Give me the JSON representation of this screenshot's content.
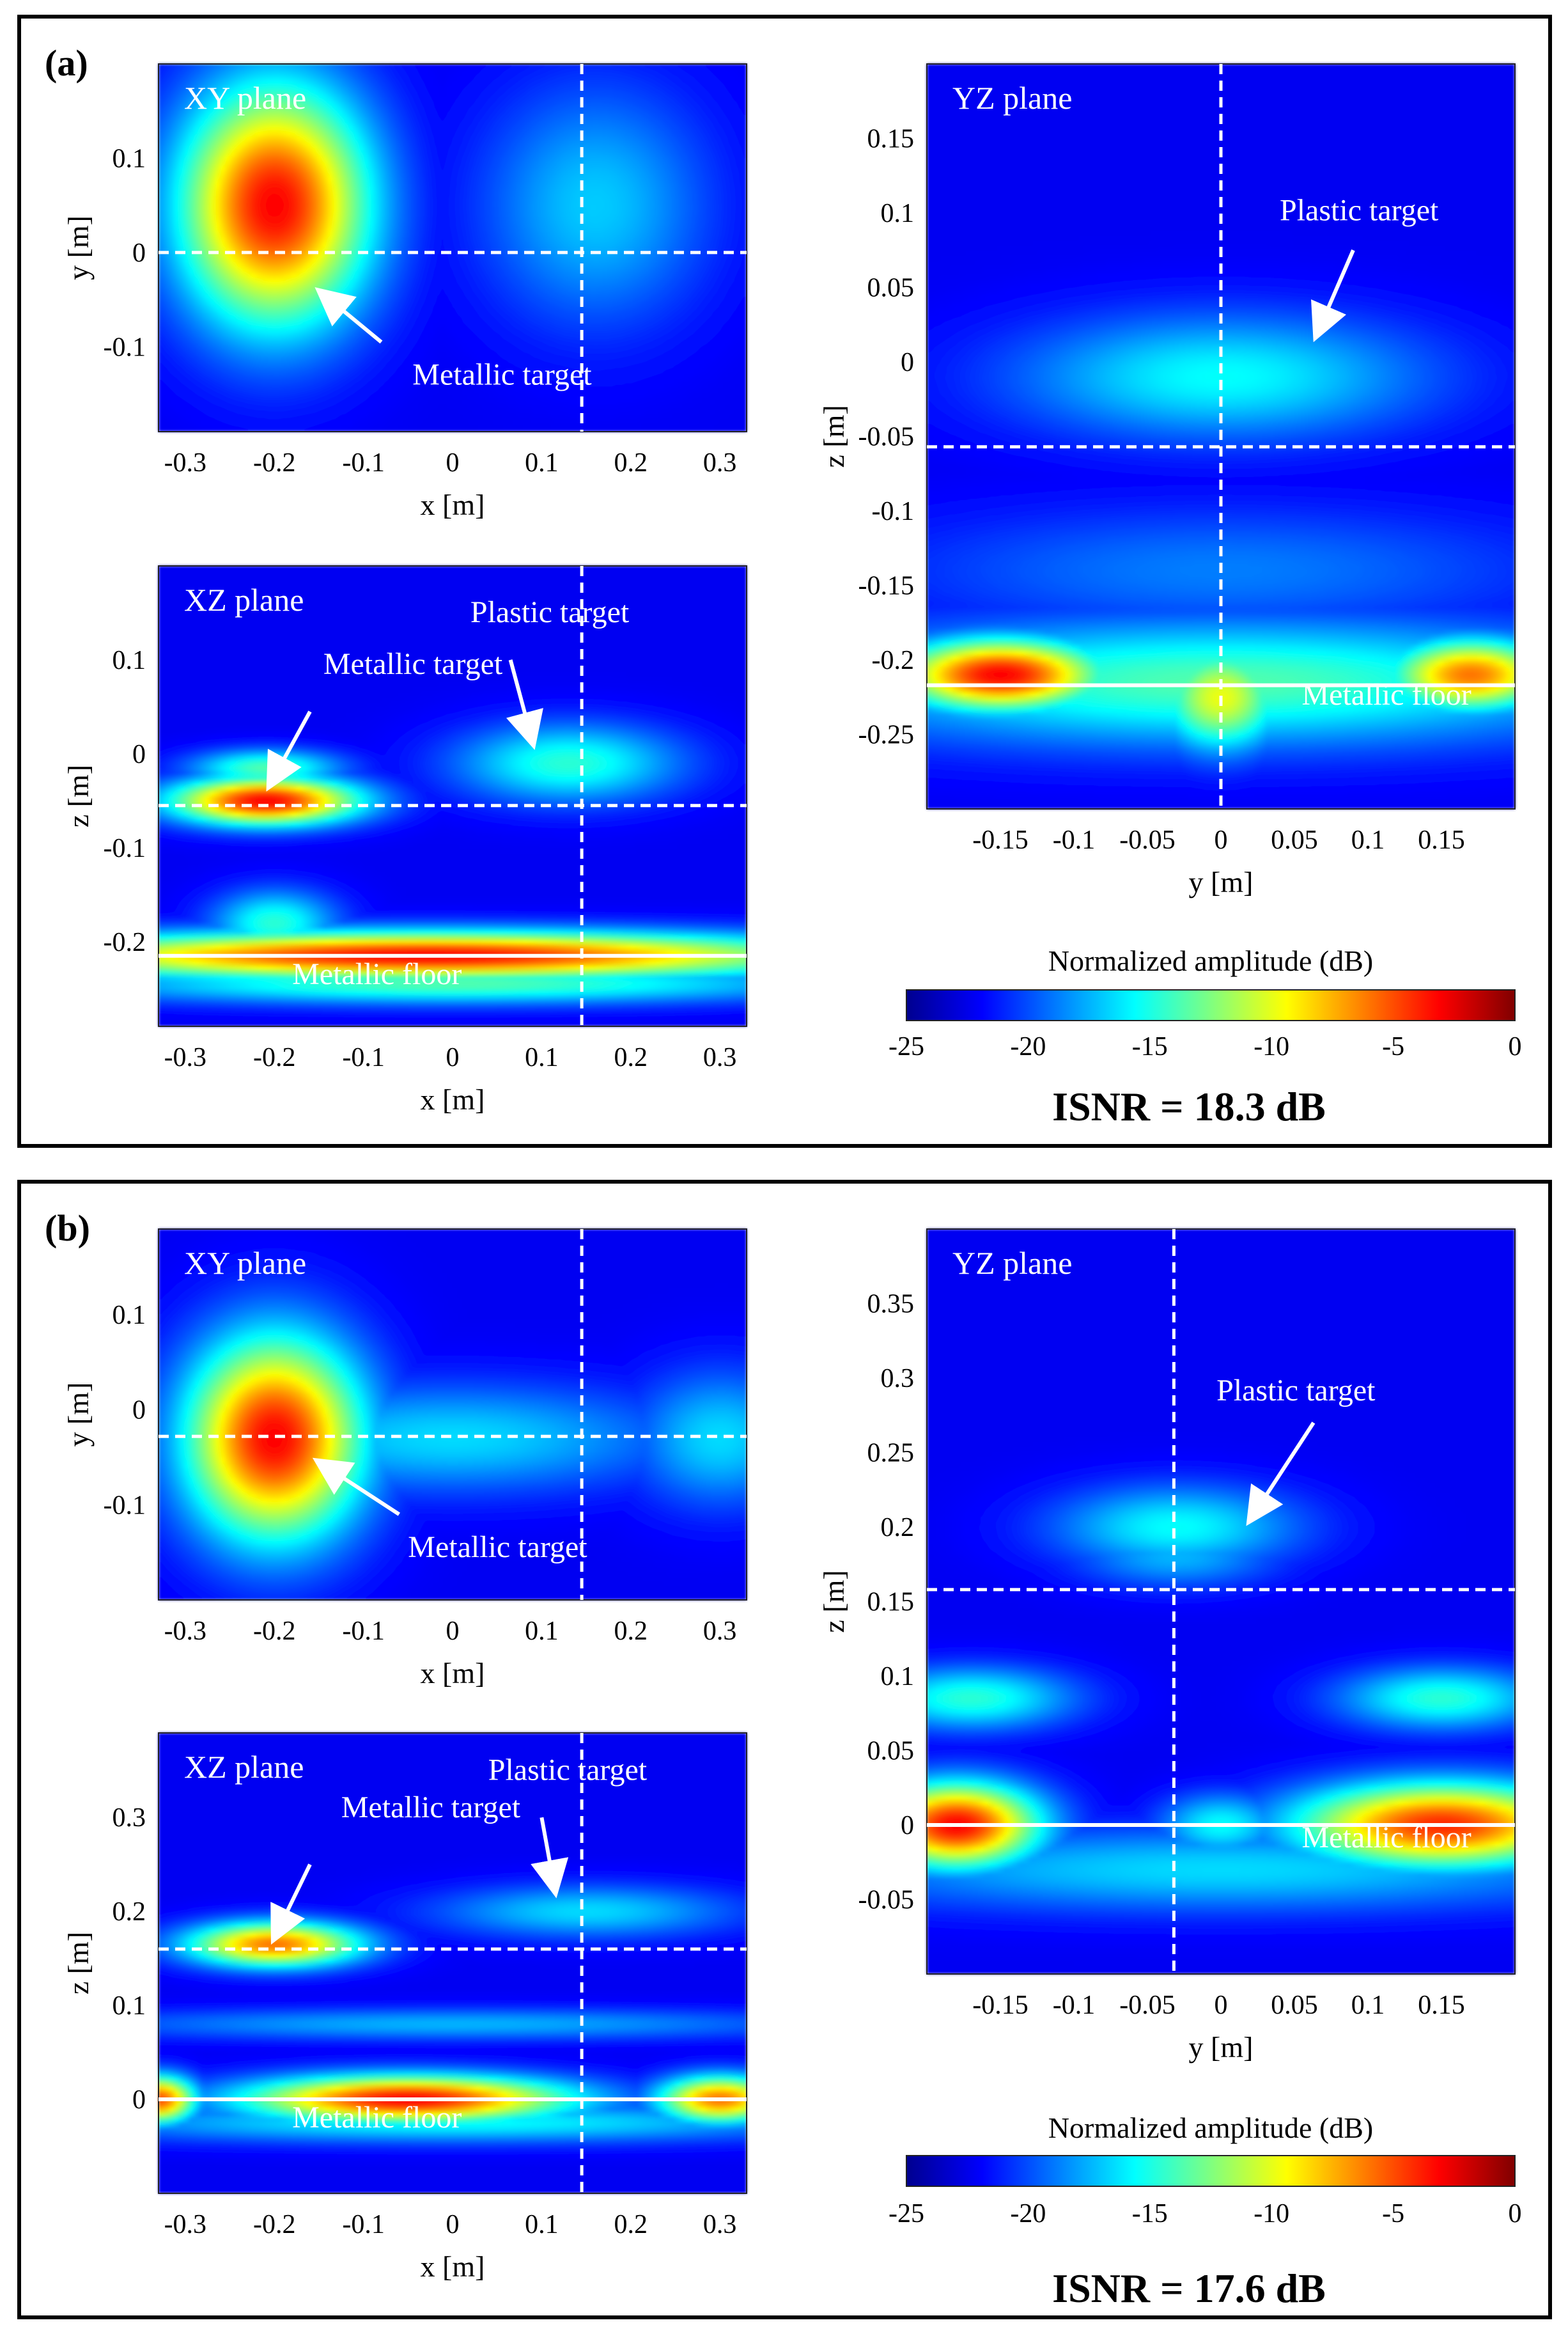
{
  "figure": {
    "panels": [
      {
        "label": "(a)",
        "isnr": "ISNR = 18.3 dB",
        "colorbar": {
          "title": "Normalized amplitude (dB)",
          "ticks": [
            "-25",
            "-20",
            "-15",
            "-10",
            "-5",
            "0"
          ],
          "range": [
            -25,
            0
          ]
        },
        "plots": [
          {
            "id": "a-xy",
            "plane_label": "XY plane",
            "xlabel": "x [m]",
            "ylabel": "y [m]",
            "xlim": [
              -0.33,
              0.33
            ],
            "ylim": [
              -0.19,
              0.2
            ],
            "xticks": [
              -0.3,
              -0.2,
              -0.1,
              0,
              0.1,
              0.2,
              0.3
            ],
            "xtick_labels": [
              "-0.3",
              "-0.2",
              "-0.1",
              "0",
              "0.1",
              "0.2",
              "0.3"
            ],
            "yticks": [
              0.1,
              0,
              -0.1
            ],
            "ytick_labels": [
              "0.1",
              "0",
              "-0.1"
            ],
            "cut_x": 0.145,
            "cut_y": 0.0,
            "solid_y": null,
            "blobs": [
              {
                "x": -0.2,
                "y": 0.05,
                "sx": 0.075,
                "sy": 0.09,
                "v": 1.0
              },
              {
                "x": -0.2,
                "y": 0.05,
                "sx": 0.032,
                "sy": 0.042,
                "v": 0.55
              },
              {
                "x": 0.16,
                "y": 0.05,
                "sx": 0.09,
                "sy": 0.09,
                "v": 0.28
              }
            ],
            "annotations": [
              {
                "text": "Metallic target",
                "tx": -0.045,
                "ty": -0.14,
                "ax": -0.08,
                "ay": -0.095,
                "hx": -0.148,
                "hy": -0.042
              }
            ]
          },
          {
            "id": "a-xz",
            "plane_label": "XZ plane",
            "xlabel": "x [m]",
            "ylabel": "z [m]",
            "xlim": [
              -0.33,
              0.33
            ],
            "ylim": [
              -0.29,
              0.2
            ],
            "xticks": [
              -0.3,
              -0.2,
              -0.1,
              0,
              0.1,
              0.2,
              0.3
            ],
            "xtick_labels": [
              "-0.3",
              "-0.2",
              "-0.1",
              "0",
              "0.1",
              "0.2",
              "0.3"
            ],
            "yticks": [
              0.1,
              0,
              -0.1,
              -0.2
            ],
            "ytick_labels": [
              "0.1",
              "0",
              "-0.1",
              "-0.2"
            ],
            "cut_x": 0.145,
            "cut_y": -0.055,
            "solid_y": -0.215,
            "blobs": [
              {
                "x": -0.21,
                "y": -0.05,
                "sx": 0.075,
                "sy": 0.018,
                "v": 1.0
              },
              {
                "x": -0.21,
                "y": -0.015,
                "sx": 0.06,
                "sy": 0.014,
                "v": 0.45
              },
              {
                "x": 0.13,
                "y": -0.01,
                "sx": 0.09,
                "sy": 0.03,
                "v": 0.4
              },
              {
                "x": -0.03,
                "y": -0.215,
                "sx": 0.32,
                "sy": 0.018,
                "v": 1.0
              },
              {
                "x": -0.2,
                "y": -0.18,
                "sx": 0.05,
                "sy": 0.025,
                "v": 0.4
              },
              {
                "x": 0.0,
                "y": -0.245,
                "sx": 0.3,
                "sy": 0.015,
                "v": 0.45
              }
            ],
            "annotations": [
              {
                "text": "Metallic target",
                "tx": -0.145,
                "ty": 0.085,
                "ax": -0.16,
                "ay": 0.045,
                "hx": -0.205,
                "hy": -0.033
              },
              {
                "text": "Plastic target",
                "tx": 0.02,
                "ty": 0.14,
                "ax": 0.065,
                "ay": 0.1,
                "hx": 0.09,
                "hy": 0.012
              },
              {
                "text": "Metallic floor",
                "tx": -0.18,
                "ty": -0.245,
                "ax": null,
                "ay": null,
                "hx": null,
                "hy": null
              }
            ]
          },
          {
            "id": "a-yz",
            "plane_label": "YZ plane",
            "xlabel": "y [m]",
            "ylabel": "z [m]",
            "xlim": [
              -0.2,
              0.2
            ],
            "ylim": [
              -0.3,
              0.2
            ],
            "xticks": [
              -0.15,
              -0.1,
              -0.05,
              0,
              0.05,
              0.1,
              0.15
            ],
            "xtick_labels": [
              "-0.15",
              "-0.1",
              "-0.05",
              "0",
              "0.05",
              "0.1",
              "0.15"
            ],
            "yticks": [
              0.15,
              0.1,
              0.05,
              0,
              -0.05,
              -0.1,
              -0.15,
              -0.2,
              -0.25
            ],
            "ytick_labels": [
              "0.15",
              "0.1",
              "0.05",
              "0",
              "-0.05",
              "-0.1",
              "-0.15",
              "-0.2",
              "-0.25"
            ],
            "cut_x": 0.0,
            "cut_y": -0.057,
            "solid_y": -0.217,
            "blobs": [
              {
                "x": 0.0,
                "y": -0.01,
                "sx": 0.1,
                "sy": 0.03,
                "v": 0.35
              },
              {
                "x": -0.15,
                "y": -0.21,
                "sx": 0.05,
                "sy": 0.017,
                "v": 1.0
              },
              {
                "x": 0.17,
                "y": -0.21,
                "sx": 0.04,
                "sy": 0.017,
                "v": 0.85
              },
              {
                "x": 0.0,
                "y": -0.225,
                "sx": 0.03,
                "sy": 0.025,
                "v": 0.65
              },
              {
                "x": 0.0,
                "y": -0.215,
                "sx": 0.2,
                "sy": 0.03,
                "v": 0.45
              },
              {
                "x": 0.0,
                "y": -0.14,
                "sx": 0.16,
                "sy": 0.03,
                "v": 0.18
              }
            ],
            "annotations": [
              {
                "text": "Plastic target",
                "tx": 0.04,
                "ty": 0.095,
                "ax": 0.09,
                "ay": 0.075,
                "hx": 0.065,
                "hy": 0.018
              },
              {
                "text": "Metallic floor",
                "tx": 0.055,
                "ty": -0.23,
                "ax": null,
                "ay": null,
                "hx": null,
                "hy": null
              }
            ]
          }
        ]
      },
      {
        "label": "(b)",
        "isnr": "ISNR = 17.6 dB",
        "colorbar": {
          "title": "Normalized amplitude (dB)",
          "ticks": [
            "-25",
            "-20",
            "-15",
            "-10",
            "-5",
            "0"
          ],
          "range": [
            -25,
            0
          ]
        },
        "plots": [
          {
            "id": "b-xy",
            "plane_label": "XY plane",
            "xlabel": "x [m]",
            "ylabel": "y [m]",
            "xlim": [
              -0.33,
              0.33
            ],
            "ylim": [
              -0.2,
              0.19
            ],
            "xticks": [
              -0.3,
              -0.2,
              -0.1,
              0,
              0.1,
              0.2,
              0.3
            ],
            "xtick_labels": [
              "-0.3",
              "-0.2",
              "-0.1",
              "0",
              "0.1",
              "0.2",
              "0.3"
            ],
            "yticks": [
              0.1,
              0,
              -0.1
            ],
            "ytick_labels": [
              "0.1",
              "0",
              "-0.1"
            ],
            "cut_x": 0.145,
            "cut_y": -0.028,
            "solid_y": null,
            "blobs": [
              {
                "x": -0.2,
                "y": -0.03,
                "sx": 0.07,
                "sy": 0.075,
                "v": 1.0
              },
              {
                "x": -0.2,
                "y": -0.03,
                "sx": 0.035,
                "sy": 0.04,
                "v": 0.5
              },
              {
                "x": 0.0,
                "y": -0.03,
                "sx": 0.18,
                "sy": 0.04,
                "v": 0.3
              },
              {
                "x": 0.3,
                "y": -0.03,
                "sx": 0.07,
                "sy": 0.05,
                "v": 0.3
              }
            ],
            "annotations": [
              {
                "text": "Metallic target",
                "tx": -0.05,
                "ty": -0.155,
                "ax": -0.06,
                "ay": -0.11,
                "hx": -0.15,
                "hy": -0.055
              }
            ]
          },
          {
            "id": "b-xz",
            "plane_label": "XZ plane",
            "xlabel": "x [m]",
            "ylabel": "z [m]",
            "xlim": [
              -0.33,
              0.33
            ],
            "ylim": [
              -0.1,
              0.39
            ],
            "xticks": [
              -0.3,
              -0.2,
              -0.1,
              0,
              0.1,
              0.2,
              0.3
            ],
            "xtick_labels": [
              "-0.3",
              "-0.2",
              "-0.1",
              "0",
              "0.1",
              "0.2",
              "0.3"
            ],
            "yticks": [
              0.3,
              0.2,
              0.1,
              0
            ],
            "ytick_labels": [
              "0.3",
              "0.2",
              "0.1",
              "0"
            ],
            "cut_x": 0.145,
            "cut_y": 0.16,
            "solid_y": 0.0,
            "blobs": [
              {
                "x": -0.2,
                "y": 0.165,
                "sx": 0.07,
                "sy": 0.017,
                "v": 0.85
              },
              {
                "x": 0.15,
                "y": 0.2,
                "sx": 0.12,
                "sy": 0.02,
                "v": 0.3
              },
              {
                "x": -0.05,
                "y": 0.0,
                "sx": 0.13,
                "sy": 0.018,
                "v": 1.0
              },
              {
                "x": -0.33,
                "y": 0.0,
                "sx": 0.03,
                "sy": 0.018,
                "v": 0.9
              },
              {
                "x": 0.3,
                "y": 0.0,
                "sx": 0.05,
                "sy": 0.018,
                "v": 0.85
              },
              {
                "x": 0.0,
                "y": -0.025,
                "sx": 0.3,
                "sy": 0.015,
                "v": 0.35
              },
              {
                "x": 0.0,
                "y": 0.08,
                "sx": 0.3,
                "sy": 0.012,
                "v": 0.25
              }
            ],
            "annotations": [
              {
                "text": "Metallic target",
                "tx": -0.125,
                "ty": 0.3,
                "ax": -0.16,
                "ay": 0.25,
                "hx": -0.2,
                "hy": 0.172
              },
              {
                "text": "Plastic target",
                "tx": 0.04,
                "ty": 0.34,
                "ax": 0.1,
                "ay": 0.3,
                "hx": 0.115,
                "hy": 0.222
              },
              {
                "text": "Metallic floor",
                "tx": -0.18,
                "ty": -0.03,
                "ax": null,
                "ay": null,
                "hx": null,
                "hy": null
              }
            ]
          },
          {
            "id": "b-yz",
            "plane_label": "YZ plane",
            "xlabel": "y [m]",
            "ylabel": "z [m]",
            "xlim": [
              -0.2,
              0.2
            ],
            "ylim": [
              -0.1,
              0.4
            ],
            "xticks": [
              -0.15,
              -0.1,
              -0.05,
              0,
              0.05,
              0.1,
              0.15
            ],
            "xtick_labels": [
              "-0.15",
              "-0.1",
              "-0.05",
              "0",
              "0.05",
              "0.1",
              "0.15"
            ],
            "yticks": [
              0.35,
              0.3,
              0.25,
              0.2,
              0.15,
              0.1,
              0.05,
              0,
              -0.05
            ],
            "ytick_labels": [
              "0.35",
              "0.3",
              "0.25",
              "0.2",
              "0.15",
              "0.1",
              "0.05",
              "0",
              "-0.05"
            ],
            "cut_x": -0.032,
            "cut_y": 0.158,
            "solid_y": 0.0,
            "blobs": [
              {
                "x": -0.03,
                "y": 0.2,
                "sx": 0.06,
                "sy": 0.02,
                "v": 0.35
              },
              {
                "x": -0.03,
                "y": 0.18,
                "sx": 0.05,
                "sy": 0.015,
                "v": 0.25
              },
              {
                "x": -0.18,
                "y": 0.0,
                "sx": 0.04,
                "sy": 0.02,
                "v": 1.0
              },
              {
                "x": 0.15,
                "y": 0.0,
                "sx": 0.07,
                "sy": 0.02,
                "v": 0.95
              },
              {
                "x": 0.0,
                "y": 0.0,
                "sx": 0.03,
                "sy": 0.015,
                "v": 0.35
              },
              {
                "x": -0.17,
                "y": 0.085,
                "sx": 0.05,
                "sy": 0.015,
                "v": 0.4
              },
              {
                "x": 0.15,
                "y": 0.085,
                "sx": 0.05,
                "sy": 0.015,
                "v": 0.4
              },
              {
                "x": 0.0,
                "y": -0.03,
                "sx": 0.2,
                "sy": 0.02,
                "v": 0.3
              }
            ],
            "annotations": [
              {
                "text": "Plastic target",
                "tx": -0.003,
                "ty": 0.285,
                "ax": 0.063,
                "ay": 0.27,
                "hx": 0.02,
                "hy": 0.205
              },
              {
                "text": "Metallic floor",
                "tx": 0.055,
                "ty": -0.015,
                "ax": null,
                "ay": null,
                "hx": null,
                "hy": null
              }
            ]
          }
        ]
      }
    ]
  },
  "chart_data": {
    "type": "heatmap",
    "colorbar_label": "Normalized amplitude (dB)",
    "colorbar_range": [
      -25,
      0
    ],
    "panels": [
      {
        "label": "(a)",
        "isnr_db": 18.3,
        "planes": [
          "XY plane",
          "XZ plane",
          "YZ plane"
        ]
      },
      {
        "label": "(b)",
        "isnr_db": 17.6,
        "planes": [
          "XY plane",
          "XZ plane",
          "YZ plane"
        ]
      }
    ]
  }
}
